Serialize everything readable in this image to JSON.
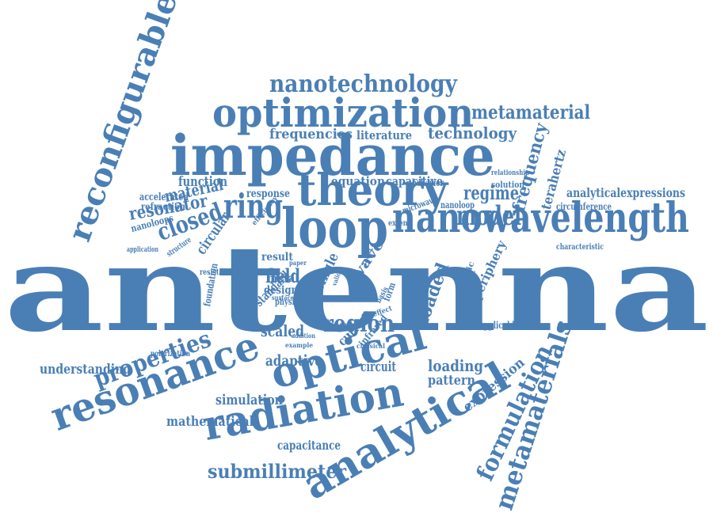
{
  "word_color": "#4a7fb5",
  "background": "#ffffff",
  "words": [
    {
      "key": "antenna",
      "text": "antenna",
      "weight": 100
    },
    {
      "key": "impedance",
      "text": "impedance",
      "weight": 40
    },
    {
      "key": "nanowavelength",
      "text": "nanowavelength",
      "weight": 32
    },
    {
      "key": "loop",
      "text": "loop",
      "weight": 34
    },
    {
      "key": "theory",
      "text": "theory",
      "weight": 30
    },
    {
      "key": "optimization",
      "text": "optimization",
      "weight": 28
    },
    {
      "key": "reconfigurable",
      "text": "reconfigurable",
      "weight": 28
    },
    {
      "key": "resonance",
      "text": "resonance",
      "weight": 32
    },
    {
      "key": "radiation",
      "text": "radiation",
      "weight": 32
    },
    {
      "key": "optical",
      "text": "optical",
      "weight": 34
    },
    {
      "key": "analytical",
      "text": "analytical",
      "weight": 36
    },
    {
      "key": "formulation",
      "text": "formulation",
      "weight": 20
    },
    {
      "key": "metamaterials",
      "text": "metamaterials",
      "weight": 20
    },
    {
      "key": "nanotechnology",
      "text": "nanotechnology",
      "weight": 18
    },
    {
      "key": "metamaterial",
      "text": "metamaterial",
      "weight": 16
    },
    {
      "key": "technology",
      "text": "technology",
      "weight": 14
    },
    {
      "key": "frequencies",
      "text": "frequencies",
      "weight": 10
    },
    {
      "key": "literature",
      "text": "literature",
      "weight": 8
    },
    {
      "key": "frequency",
      "text": "frequency",
      "weight": 14
    },
    {
      "key": "terahertz",
      "text": "terahertz",
      "weight": 10
    },
    {
      "key": "ring",
      "text": "ring",
      "weight": 22
    },
    {
      "key": "model",
      "text": "model",
      "weight": 20
    },
    {
      "key": "regime",
      "text": "regime",
      "weight": 14
    },
    {
      "key": "closed",
      "text": "closed",
      "weight": 18
    },
    {
      "key": "resonator",
      "text": "resonator",
      "weight": 14
    },
    {
      "key": "material",
      "text": "material",
      "weight": 14
    },
    {
      "key": "function",
      "text": "function",
      "weight": 11
    },
    {
      "key": "accelerated",
      "text": "accelerated",
      "weight": 8
    },
    {
      "key": "refraction",
      "text": "refraction",
      "weight": 7
    },
    {
      "key": "nanoloops",
      "text": "nanoloops",
      "weight": 7
    },
    {
      "key": "application",
      "text": "application",
      "weight": 5
    },
    {
      "key": "circular",
      "text": "circular",
      "weight": 10
    },
    {
      "key": "structure",
      "text": "structure",
      "weight": 6
    },
    {
      "key": "equation",
      "text": "equation",
      "weight": 9
    },
    {
      "key": "capacitive",
      "text": "capacitive",
      "weight": 9
    },
    {
      "key": "behavior",
      "text": "behavior",
      "weight": 7
    },
    {
      "key": "response",
      "text": "response",
      "weight": 8
    },
    {
      "key": "relationship",
      "text": "relationship",
      "weight": 5
    },
    {
      "key": "solution",
      "text": "solution",
      "weight": 6
    },
    {
      "key": "analyticalexpressions",
      "text": "analyticalexpressions",
      "weight": 9
    },
    {
      "key": "circumference",
      "text": "circumference",
      "weight": 6
    },
    {
      "key": "characteristic",
      "text": "characteristic",
      "weight": 5
    },
    {
      "key": "nanoloop",
      "text": "nanoloop",
      "weight": 6
    },
    {
      "key": "microwave",
      "text": "microwave",
      "weight": 6
    },
    {
      "key": "extend",
      "text": "extend",
      "weight": 5
    },
    {
      "key": "result",
      "text": "result",
      "weight": 8
    },
    {
      "key": "field",
      "text": "field",
      "weight": 10
    },
    {
      "key": "metal",
      "text": "metal",
      "weight": 8
    },
    {
      "key": "design",
      "text": "design",
      "weight": 8
    },
    {
      "key": "physic",
      "text": "physic",
      "weight": 6
    },
    {
      "key": "standard",
      "text": "standard",
      "weight": 8
    },
    {
      "key": "scaled",
      "text": "scaled",
      "weight": 9
    },
    {
      "key": "region",
      "text": "region",
      "weight": 14
    },
    {
      "key": "loaded",
      "text": "loaded",
      "weight": 11
    },
    {
      "key": "wave",
      "text": "wave",
      "weight": 10
    },
    {
      "key": "single",
      "text": "single",
      "weight": 9
    },
    {
      "key": "current",
      "text": "current",
      "weight": 8
    },
    {
      "key": "infrared",
      "text": "infrared",
      "weight": 6
    },
    {
      "key": "input",
      "text": "input",
      "weight": 6
    },
    {
      "key": "adaptive",
      "text": "adaptive",
      "weight": 11
    },
    {
      "key": "circuit",
      "text": "circuit",
      "weight": 10
    },
    {
      "key": "loading",
      "text": "loading",
      "weight": 11
    },
    {
      "key": "pattern",
      "text": "pattern",
      "weight": 9
    },
    {
      "key": "understanding",
      "text": "understanding",
      "weight": 11
    },
    {
      "key": "properties",
      "text": "properties",
      "weight": 16
    },
    {
      "key": "polarization",
      "text": "polarization",
      "weight": 5
    },
    {
      "key": "simulation",
      "text": "simulation",
      "weight": 11
    },
    {
      "key": "mathematical",
      "text": "mathematical",
      "weight": 11
    },
    {
      "key": "capacitance",
      "text": "capacitance",
      "weight": 9
    },
    {
      "key": "submillimeter",
      "text": "submillimeter",
      "weight": 14
    },
    {
      "key": "expression",
      "text": "expression",
      "weight": 9
    },
    {
      "key": "periphery",
      "text": "periphery",
      "weight": 9
    },
    {
      "key": "applicable",
      "text": "applicable",
      "weight": 6
    },
    {
      "key": "performance",
      "text": "performance",
      "weight": 6
    },
    {
      "key": "analytic",
      "text": "analytic",
      "weight": 6
    },
    {
      "key": "review",
      "text": "review",
      "weight": 5
    },
    {
      "key": "resistance",
      "text": "resistance",
      "weight": 5
    },
    {
      "key": "foundation",
      "text": "foundation",
      "weight": 6
    },
    {
      "key": "efficiency",
      "text": "efficiency",
      "weight": 4
    },
    {
      "key": "paper",
      "text": "paper",
      "weight": 4
    },
    {
      "key": "radio",
      "text": "radio",
      "weight": 4
    },
    {
      "key": "form",
      "text": "form",
      "weight": 5
    },
    {
      "key": "basis",
      "text": "basis",
      "weight": 4
    },
    {
      "key": "effect",
      "text": "effect",
      "weight": 4
    },
    {
      "key": "classical",
      "text": "classical",
      "weight": 4
    },
    {
      "key": "example",
      "text": "example",
      "weight": 4
    },
    {
      "key": "addition",
      "text": "addition",
      "weight": 4
    },
    {
      "key": "surface",
      "text": "surface",
      "weight": 3
    },
    {
      "key": "valid",
      "text": "valid",
      "weight": 3
    }
  ]
}
